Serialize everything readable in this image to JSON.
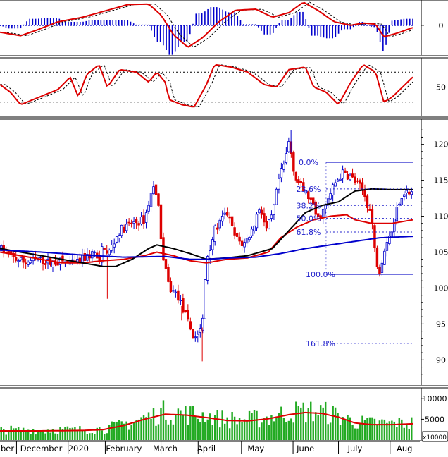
{
  "chart_data": [
    {
      "panel": "macd",
      "type": "line",
      "y_labels": [
        "0"
      ],
      "series": [
        {
          "role": "macd-line",
          "color": "#dd0000"
        },
        {
          "role": "signal-line",
          "color": "#000000",
          "style": "dashed"
        },
        {
          "role": "histogram",
          "color": "#0000cc"
        }
      ],
      "points": [
        [
          0,
          -0.3
        ],
        [
          0.05,
          -0.45
        ],
        [
          0.09,
          -0.2
        ],
        [
          0.14,
          0.15
        ],
        [
          0.2,
          0.35
        ],
        [
          0.26,
          0.65
        ],
        [
          0.31,
          0.9
        ],
        [
          0.36,
          0.92
        ],
        [
          0.39,
          0.45
        ],
        [
          0.42,
          -0.4
        ],
        [
          0.455,
          -0.95
        ],
        [
          0.49,
          -0.55
        ],
        [
          0.53,
          0.15
        ],
        [
          0.57,
          0.65
        ],
        [
          0.62,
          0.7
        ],
        [
          0.66,
          0.35
        ],
        [
          0.7,
          0.55
        ],
        [
          0.735,
          1.0
        ],
        [
          0.77,
          0.65
        ],
        [
          0.81,
          0.15
        ],
        [
          0.85,
          0.0
        ],
        [
          0.88,
          0.1
        ],
        [
          0.91,
          0.05
        ],
        [
          0.93,
          -0.5
        ],
        [
          0.96,
          -0.35
        ],
        [
          1.0,
          -0.1
        ]
      ]
    },
    {
      "panel": "stochastic",
      "type": "line",
      "y_labels": [
        "50"
      ],
      "series": [
        {
          "role": "%K",
          "color": "#dd0000"
        },
        {
          "role": "%D",
          "color": "#000000",
          "style": "dashed"
        }
      ],
      "levels": [
        80,
        20
      ],
      "points": [
        [
          0,
          55
        ],
        [
          0.025,
          40
        ],
        [
          0.05,
          15
        ],
        [
          0.08,
          25
        ],
        [
          0.11,
          35
        ],
        [
          0.14,
          45
        ],
        [
          0.17,
          70
        ],
        [
          0.19,
          30
        ],
        [
          0.21,
          75
        ],
        [
          0.24,
          95
        ],
        [
          0.26,
          50
        ],
        [
          0.29,
          85
        ],
        [
          0.33,
          80
        ],
        [
          0.36,
          60
        ],
        [
          0.38,
          80
        ],
        [
          0.4,
          60
        ],
        [
          0.41,
          25
        ],
        [
          0.44,
          15
        ],
        [
          0.47,
          10
        ],
        [
          0.5,
          55
        ],
        [
          0.52,
          95
        ],
        [
          0.56,
          90
        ],
        [
          0.6,
          80
        ],
        [
          0.64,
          55
        ],
        [
          0.67,
          50
        ],
        [
          0.7,
          85
        ],
        [
          0.74,
          90
        ],
        [
          0.76,
          50
        ],
        [
          0.79,
          40
        ],
        [
          0.82,
          15
        ],
        [
          0.85,
          60
        ],
        [
          0.88,
          95
        ],
        [
          0.91,
          80
        ],
        [
          0.93,
          20
        ],
        [
          0.95,
          30
        ],
        [
          1.0,
          70
        ]
      ]
    },
    {
      "panel": "price",
      "type": "candlestick",
      "y_ticks": [
        90,
        95,
        100,
        105,
        110,
        115,
        120
      ],
      "ylim": [
        86.5,
        123.5
      ],
      "moving_averages": [
        {
          "role": "ma-short",
          "color": "#dd0000"
        },
        {
          "role": "ma-mid",
          "color": "#000000"
        },
        {
          "role": "ma-long",
          "color": "#0000cc"
        }
      ],
      "ma_points": [
        [
          [
            0,
            105.0
          ],
          [
            0.05,
            104.5
          ],
          [
            0.1,
            104.0
          ],
          [
            0.15,
            103.5
          ],
          [
            0.2,
            103.5
          ],
          [
            0.25,
            103.8
          ],
          [
            0.3,
            104.0
          ],
          [
            0.35,
            104.5
          ],
          [
            0.38,
            105.0
          ],
          [
            0.42,
            104.5
          ],
          [
            0.46,
            103.8
          ],
          [
            0.5,
            103.5
          ],
          [
            0.55,
            104.0
          ],
          [
            0.6,
            104.2
          ],
          [
            0.65,
            105.0
          ],
          [
            0.68,
            107.0
          ],
          [
            0.72,
            108.5
          ],
          [
            0.76,
            109.5
          ],
          [
            0.8,
            110.0
          ],
          [
            0.84,
            110.2
          ],
          [
            0.86,
            109.5
          ],
          [
            0.9,
            109.0
          ],
          [
            0.95,
            109.0
          ],
          [
            1.0,
            109.5
          ]
        ],
        [
          [
            0,
            105.5
          ],
          [
            0.05,
            105.0
          ],
          [
            0.1,
            104.5
          ],
          [
            0.15,
            104.0
          ],
          [
            0.2,
            103.5
          ],
          [
            0.25,
            103.0
          ],
          [
            0.28,
            103.0
          ],
          [
            0.32,
            104.0
          ],
          [
            0.36,
            105.5
          ],
          [
            0.38,
            106.0
          ],
          [
            0.42,
            105.5
          ],
          [
            0.46,
            104.8
          ],
          [
            0.5,
            104.0
          ],
          [
            0.55,
            104.2
          ],
          [
            0.6,
            104.5
          ],
          [
            0.66,
            105.5
          ],
          [
            0.7,
            108.0
          ],
          [
            0.74,
            110.5
          ],
          [
            0.78,
            111.5
          ],
          [
            0.82,
            112.0
          ],
          [
            0.86,
            113.5
          ],
          [
            0.9,
            113.8
          ],
          [
            0.95,
            113.7
          ],
          [
            1.0,
            113.7
          ]
        ],
        [
          [
            0,
            105.3
          ],
          [
            0.1,
            105.0
          ],
          [
            0.2,
            104.6
          ],
          [
            0.3,
            104.3
          ],
          [
            0.4,
            104.4
          ],
          [
            0.46,
            104.0
          ],
          [
            0.5,
            104.0
          ],
          [
            0.56,
            104.2
          ],
          [
            0.62,
            104.3
          ],
          [
            0.68,
            104.8
          ],
          [
            0.74,
            105.5
          ],
          [
            0.8,
            106.0
          ],
          [
            0.86,
            106.5
          ],
          [
            0.92,
            107.0
          ],
          [
            1.0,
            107.2
          ]
        ]
      ],
      "fibonacci": {
        "color": "#2222cc",
        "high": 117.5,
        "low": 101.9,
        "levels": [
          {
            "label": "0.0%",
            "value": 117.5
          },
          {
            "label": "23.6%",
            "value": 113.8
          },
          {
            "label": "38.2%",
            "value": 111.5
          },
          {
            "label": "50.0%",
            "value": 109.7
          },
          {
            "label": "61.8%",
            "value": 107.8
          },
          {
            "label": "100.0%",
            "value": 101.9
          },
          {
            "label": "161.8%",
            "value": 92.3
          }
        ]
      }
    },
    {
      "panel": "volume",
      "type": "bar",
      "y_ticks_labels": [
        "5000",
        "10000"
      ],
      "y_ticks_values": [
        5000,
        10000
      ],
      "ylim": [
        0,
        12500
      ],
      "unit_label": "x10000",
      "moving_average": {
        "role": "volume-ma",
        "color": "#dd0000"
      },
      "bar_color": "#22aa22",
      "ma_points": [
        [
          0,
          2200
        ],
        [
          0.1,
          2200
        ],
        [
          0.2,
          2300
        ],
        [
          0.25,
          2500
        ],
        [
          0.3,
          3500
        ],
        [
          0.35,
          5000
        ],
        [
          0.4,
          6200
        ],
        [
          0.45,
          6000
        ],
        [
          0.5,
          5400
        ],
        [
          0.55,
          4700
        ],
        [
          0.6,
          4600
        ],
        [
          0.65,
          5100
        ],
        [
          0.7,
          6100
        ],
        [
          0.74,
          6600
        ],
        [
          0.78,
          6400
        ],
        [
          0.82,
          5500
        ],
        [
          0.86,
          4100
        ],
        [
          0.9,
          3700
        ],
        [
          0.95,
          3700
        ],
        [
          1.0,
          3900
        ]
      ]
    }
  ],
  "x_axis": {
    "labels": [
      "ber",
      "December",
      "2020",
      "February",
      "March",
      "April",
      "May",
      "June",
      "July",
      "Aug"
    ]
  }
}
